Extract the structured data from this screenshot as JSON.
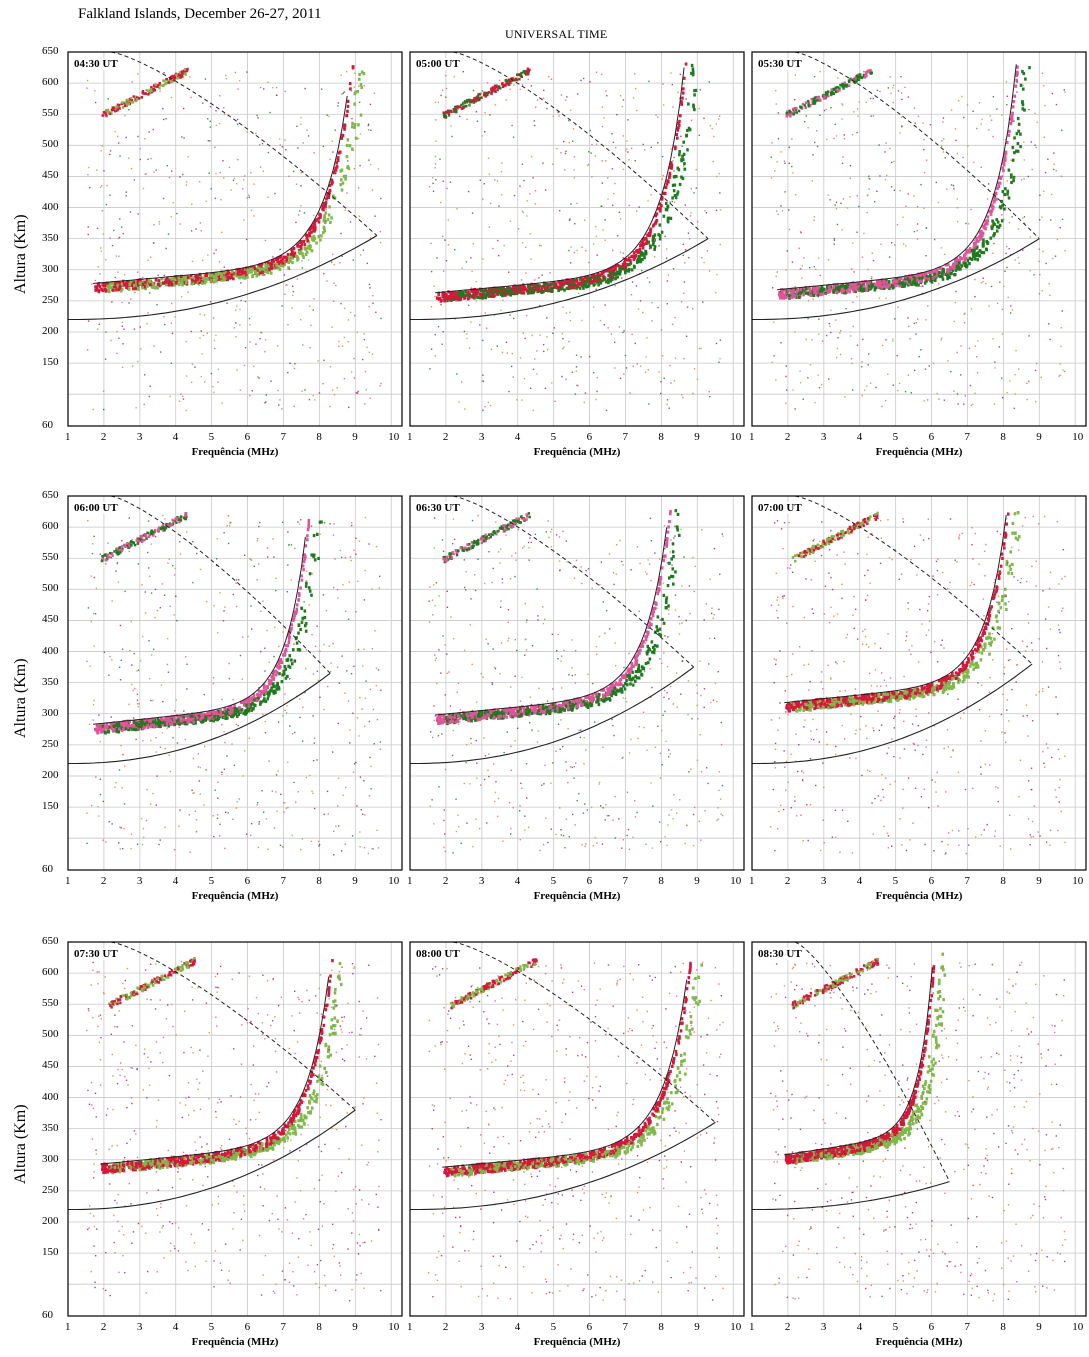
{
  "page": {
    "title": "Falkland Islands, December 26-27, 2011",
    "subtitle": "UNIVERSAL TIME"
  },
  "axes": {
    "ylabel": "Altura (Km)",
    "xlabel": "Frequência (MHz)",
    "yticks": [
      "650",
      "600",
      "550",
      "500",
      "450",
      "400",
      "350",
      "300",
      "250",
      "200",
      "150",
      "60"
    ],
    "xticks": [
      "1",
      "2",
      "3",
      "4",
      "5",
      "6",
      "7",
      "8",
      "9",
      "10"
    ]
  },
  "colors": {
    "o_trace": "#d7163c",
    "x_trace": "#7fb84a",
    "dark_green": "#1e7a1e",
    "pink": "#e0559a",
    "magenta": "#a0207a",
    "orange": "#d9822b",
    "cyan": "#2ec4d6",
    "profile": "#222222",
    "grid": "#c8c8c8"
  },
  "chart_data": [
    {
      "type": "scatter",
      "panel": "04:30 UT",
      "fof2_mhz": 9.6,
      "hmf2_km": 355,
      "hprime_km": 270,
      "trace_start_mhz": 1.7,
      "colors": [
        "o_trace",
        "x_trace"
      ]
    },
    {
      "type": "scatter",
      "panel": "05:00 UT",
      "fof2_mhz": 9.3,
      "hmf2_km": 350,
      "hprime_km": 255,
      "trace_start_mhz": 1.7,
      "colors": [
        "o_trace",
        "dark_green"
      ]
    },
    {
      "type": "scatter",
      "panel": "05:30 UT",
      "fof2_mhz": 9.0,
      "hmf2_km": 350,
      "hprime_km": 260,
      "trace_start_mhz": 1.7,
      "colors": [
        "pink",
        "dark_green"
      ]
    },
    {
      "type": "scatter",
      "panel": "06:00 UT",
      "fof2_mhz": 8.3,
      "hmf2_km": 365,
      "hprime_km": 275,
      "trace_start_mhz": 1.7,
      "colors": [
        "pink",
        "dark_green"
      ]
    },
    {
      "type": "scatter",
      "panel": "06:30 UT",
      "fof2_mhz": 8.9,
      "hmf2_km": 375,
      "hprime_km": 290,
      "trace_start_mhz": 1.7,
      "colors": [
        "pink",
        "dark_green"
      ]
    },
    {
      "type": "scatter",
      "panel": "07:00 UT",
      "fof2_mhz": 8.8,
      "hmf2_km": 380,
      "hprime_km": 310,
      "trace_start_mhz": 1.9,
      "colors": [
        "o_trace",
        "x_trace"
      ]
    },
    {
      "type": "scatter",
      "panel": "07:30 UT",
      "fof2_mhz": 9.0,
      "hmf2_km": 380,
      "hprime_km": 285,
      "trace_start_mhz": 1.9,
      "colors": [
        "o_trace",
        "x_trace"
      ]
    },
    {
      "type": "scatter",
      "panel": "08:00 UT",
      "fof2_mhz": 9.5,
      "hmf2_km": 360,
      "hprime_km": 280,
      "trace_start_mhz": 1.9,
      "colors": [
        "o_trace",
        "x_trace"
      ]
    },
    {
      "type": "scatter",
      "panel": "08:30 UT",
      "fof2_mhz": 6.5,
      "hmf2_km": 265,
      "hprime_km": 300,
      "trace_start_mhz": 1.9,
      "colors": [
        "o_trace",
        "x_trace"
      ]
    }
  ]
}
